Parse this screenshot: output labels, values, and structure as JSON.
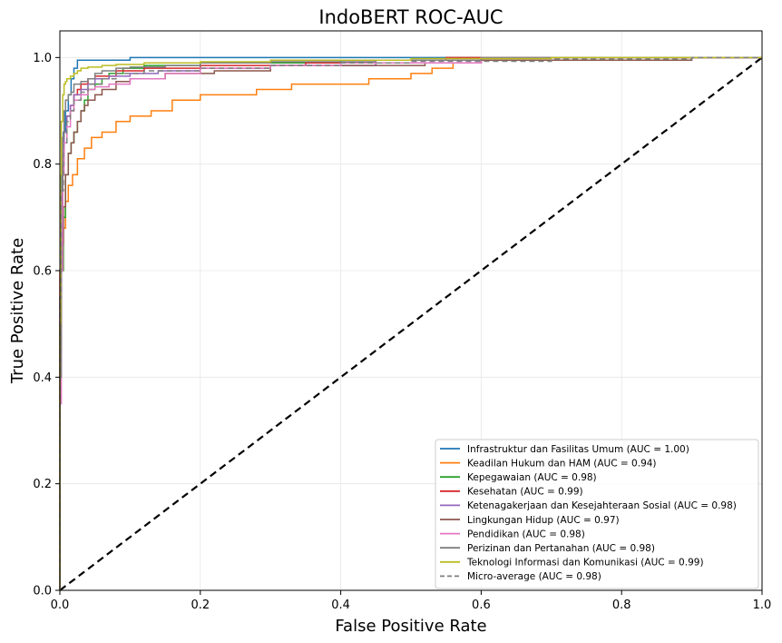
{
  "chart_data": {
    "type": "line",
    "title": "IndoBERT ROC-AUC",
    "xlabel": "False Positive Rate",
    "ylabel": "True Positive Rate",
    "xlim": [
      0,
      1
    ],
    "ylim": [
      0,
      1.05
    ],
    "xticks": [
      "0.0",
      "0.2",
      "0.4",
      "0.6",
      "0.8",
      "1.0"
    ],
    "yticks": [
      "0.0",
      "0.2",
      "0.4",
      "0.6",
      "0.8",
      "1.0"
    ],
    "grid": true,
    "legend_position": "lower-right",
    "diagonal": {
      "x": [
        0,
        1
      ],
      "y": [
        0,
        1
      ],
      "color": "#000000"
    },
    "series": [
      {
        "name": "Infrastruktur dan Fasilitas Umum (AUC = 1.00)",
        "color": "#1f77b4",
        "dashed": false,
        "x": [
          0,
          0.001,
          0.003,
          0.005,
          0.008,
          0.012,
          0.016,
          0.02,
          0.025,
          0.03,
          0.1,
          0.1,
          0.6,
          0.6,
          1.0
        ],
        "y": [
          0,
          0.5,
          0.7,
          0.8,
          0.86,
          0.9,
          0.93,
          0.96,
          0.98,
          0.995,
          0.995,
          1.0,
          1.0,
          1.0,
          1.0
        ]
      },
      {
        "name": "Keadilan Hukum dan HAM (AUC = 0.94)",
        "color": "#ff7f0e",
        "dashed": false,
        "x": [
          0,
          0.002,
          0.005,
          0.008,
          0.012,
          0.018,
          0.025,
          0.035,
          0.045,
          0.06,
          0.08,
          0.1,
          0.13,
          0.16,
          0.2,
          0.28,
          0.33,
          0.44,
          0.5,
          0.53,
          0.56,
          0.6,
          0.6,
          1.0
        ],
        "y": [
          0,
          0.45,
          0.6,
          0.68,
          0.73,
          0.76,
          0.78,
          0.81,
          0.83,
          0.85,
          0.86,
          0.88,
          0.89,
          0.9,
          0.92,
          0.93,
          0.94,
          0.95,
          0.96,
          0.97,
          0.98,
          0.99,
          0.99,
          1.0
        ]
      },
      {
        "name": "Kepegawaian (AUC = 0.98)",
        "color": "#2ca02c",
        "dashed": false,
        "x": [
          0,
          0.002,
          0.005,
          0.008,
          0.012,
          0.016,
          0.02,
          0.025,
          0.03,
          0.035,
          0.04,
          0.05,
          0.06,
          0.07,
          0.09,
          0.12,
          0.2,
          0.4,
          0.6,
          1.0
        ],
        "y": [
          0,
          0.5,
          0.6,
          0.7,
          0.78,
          0.82,
          0.84,
          0.86,
          0.88,
          0.9,
          0.92,
          0.94,
          0.95,
          0.96,
          0.97,
          0.98,
          0.985,
          0.99,
          0.995,
          1.0
        ]
      },
      {
        "name": "Kesehatan (AUC = 0.99)",
        "color": "#d62728",
        "dashed": false,
        "x": [
          0,
          0.002,
          0.004,
          0.006,
          0.01,
          0.015,
          0.02,
          0.025,
          0.03,
          0.04,
          0.05,
          0.08,
          0.12,
          0.2,
          0.35,
          0.45,
          0.55,
          0.65,
          1.0
        ],
        "y": [
          0,
          0.6,
          0.75,
          0.82,
          0.86,
          0.89,
          0.91,
          0.93,
          0.94,
          0.95,
          0.96,
          0.965,
          0.975,
          0.98,
          0.985,
          0.99,
          0.995,
          1.0,
          1.0
        ]
      },
      {
        "name": "Ketenagakerjaan dan Kesejahteraan Sosial (AUC = 0.98)",
        "color": "#9467bd",
        "dashed": false,
        "x": [
          0,
          0.002,
          0.004,
          0.006,
          0.01,
          0.015,
          0.02,
          0.03,
          0.04,
          0.05,
          0.07,
          0.1,
          0.14,
          0.2,
          0.3,
          0.45,
          0.6,
          1.0
        ],
        "y": [
          0,
          0.55,
          0.72,
          0.8,
          0.86,
          0.89,
          0.91,
          0.93,
          0.94,
          0.95,
          0.96,
          0.965,
          0.97,
          0.975,
          0.98,
          0.985,
          0.99,
          1.0
        ]
      },
      {
        "name": "Lingkungan Hidup (AUC = 0.97)",
        "color": "#8c564b",
        "dashed": false,
        "x": [
          0,
          0.002,
          0.005,
          0.008,
          0.012,
          0.016,
          0.02,
          0.025,
          0.03,
          0.035,
          0.04,
          0.05,
          0.06,
          0.08,
          0.1,
          0.15,
          0.22,
          0.3,
          0.4,
          0.52,
          0.52,
          0.6,
          0.6,
          0.9,
          1.0
        ],
        "y": [
          0,
          0.5,
          0.65,
          0.72,
          0.78,
          0.82,
          0.84,
          0.86,
          0.88,
          0.9,
          0.91,
          0.92,
          0.93,
          0.94,
          0.955,
          0.96,
          0.97,
          0.975,
          0.985,
          0.985,
          0.99,
          0.99,
          0.995,
          0.995,
          1.0
        ]
      },
      {
        "name": "Pendidikan (AUC = 0.98)",
        "color": "#e377c2",
        "dashed": false,
        "x": [
          0,
          0.002,
          0.004,
          0.006,
          0.01,
          0.015,
          0.02,
          0.03,
          0.04,
          0.05,
          0.07,
          0.1,
          0.15,
          0.2,
          0.3,
          0.4,
          0.6,
          1.0
        ],
        "y": [
          0,
          0.35,
          0.6,
          0.78,
          0.84,
          0.87,
          0.9,
          0.92,
          0.93,
          0.94,
          0.945,
          0.95,
          0.96,
          0.97,
          0.98,
          0.985,
          0.99,
          1.0
        ]
      },
      {
        "name": "Perizinan dan Pertanahan (AUC = 0.98)",
        "color": "#7f7f7f",
        "dashed": false,
        "x": [
          0,
          0.002,
          0.004,
          0.006,
          0.008,
          0.012,
          0.016,
          0.02,
          0.03,
          0.04,
          0.05,
          0.06,
          0.08,
          0.1,
          0.15,
          0.2,
          0.3,
          0.45,
          0.6,
          1.0
        ],
        "y": [
          0,
          0.4,
          0.75,
          0.85,
          0.9,
          0.92,
          0.93,
          0.935,
          0.95,
          0.955,
          0.96,
          0.97,
          0.975,
          0.98,
          0.982,
          0.985,
          0.99,
          0.992,
          0.995,
          1.0
        ]
      },
      {
        "name": "Teknologi Informasi dan Komunikasi (AUC = 0.99)",
        "color": "#bcbd22",
        "dashed": false,
        "x": [
          0,
          0.001,
          0.002,
          0.004,
          0.006,
          0.008,
          0.01,
          0.015,
          0.02,
          0.025,
          0.03,
          0.04,
          0.06,
          0.08,
          0.12,
          0.2,
          0.3,
          0.5,
          0.7,
          1.0
        ],
        "y": [
          0,
          0.5,
          0.78,
          0.88,
          0.93,
          0.95,
          0.955,
          0.96,
          0.965,
          0.97,
          0.975,
          0.98,
          0.982,
          0.985,
          0.987,
          0.99,
          0.992,
          0.995,
          0.998,
          1.0
        ]
      },
      {
        "name": "Micro-average (AUC = 0.98)",
        "color": "#7f7f7f",
        "dashed": true,
        "x": [
          0,
          0.002,
          0.005,
          0.01,
          0.015,
          0.02,
          0.03,
          0.04,
          0.06,
          0.08,
          0.12,
          0.2,
          0.3,
          0.4,
          0.5,
          0.7,
          0.9,
          1.0
        ],
        "y": [
          0,
          0.55,
          0.75,
          0.84,
          0.88,
          0.9,
          0.92,
          0.935,
          0.95,
          0.96,
          0.97,
          0.975,
          0.98,
          0.985,
          0.99,
          0.993,
          0.997,
          1.0
        ]
      }
    ]
  }
}
